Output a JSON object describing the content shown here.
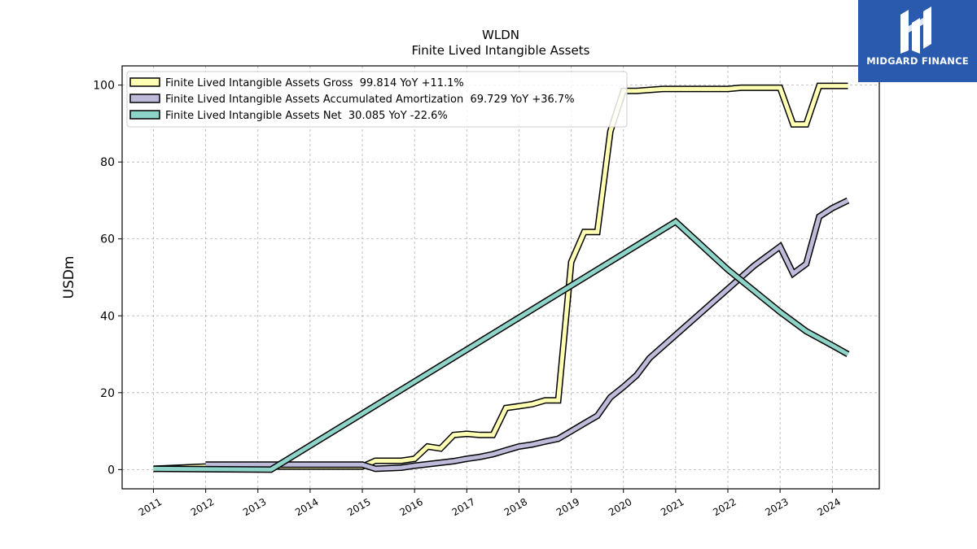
{
  "chart_data": {
    "type": "line",
    "title": "WLDN",
    "subtitle": "Finite Lived Intangible Assets",
    "ylabel": "USDm",
    "xlabel": "",
    "ylim": [
      -5,
      105
    ],
    "xlim": [
      2010.4,
      2024.9
    ],
    "yticks": [
      0,
      20,
      40,
      60,
      80,
      100
    ],
    "xticks": [
      2011,
      2012,
      2013,
      2014,
      2015,
      2016,
      2017,
      2018,
      2019,
      2020,
      2021,
      2022,
      2023,
      2024
    ],
    "grid": true,
    "legend_position": "top-left",
    "series": [
      {
        "name": "Finite Lived Intangible Assets Gross  99.814 YoY +11.1%",
        "color": "#ffffb3",
        "points": [
          [
            2011.0,
            0.2
          ],
          [
            2012.0,
            0.8
          ],
          [
            2013.0,
            0.8
          ],
          [
            2015.0,
            0.8
          ],
          [
            2015.25,
            2.3
          ],
          [
            2015.75,
            2.3
          ],
          [
            2016.0,
            2.8
          ],
          [
            2016.25,
            6.0
          ],
          [
            2016.5,
            5.5
          ],
          [
            2016.75,
            9.0
          ],
          [
            2017.0,
            9.3
          ],
          [
            2017.25,
            9.0
          ],
          [
            2017.5,
            9.0
          ],
          [
            2017.75,
            16.0
          ],
          [
            2018.0,
            16.5
          ],
          [
            2018.25,
            17.0
          ],
          [
            2018.5,
            18.0
          ],
          [
            2018.75,
            18.0
          ],
          [
            2019.0,
            54.0
          ],
          [
            2019.25,
            61.8
          ],
          [
            2019.5,
            61.8
          ],
          [
            2019.75,
            88.0
          ],
          [
            2020.0,
            98.5
          ],
          [
            2020.25,
            98.5
          ],
          [
            2020.75,
            99.0
          ],
          [
            2022.0,
            99.0
          ],
          [
            2022.25,
            99.3
          ],
          [
            2023.0,
            99.3
          ],
          [
            2023.25,
            89.8
          ],
          [
            2023.5,
            89.8
          ],
          [
            2023.75,
            99.8
          ],
          [
            2024.3,
            99.8
          ]
        ]
      },
      {
        "name": "Finite Lived Intangible Assets Accumulated Amortization  69.729 YoY +36.7%",
        "color": "#bebada",
        "points": [
          [
            2012.0,
            1.3
          ],
          [
            2015.0,
            1.3
          ],
          [
            2015.25,
            0.2
          ],
          [
            2015.75,
            0.5
          ],
          [
            2016.0,
            1.0
          ],
          [
            2016.5,
            1.8
          ],
          [
            2016.75,
            2.2
          ],
          [
            2017.0,
            2.8
          ],
          [
            2017.25,
            3.3
          ],
          [
            2017.5,
            4.0
          ],
          [
            2017.75,
            5.0
          ],
          [
            2018.0,
            6.0
          ],
          [
            2018.25,
            6.5
          ],
          [
            2018.5,
            7.3
          ],
          [
            2018.75,
            8.0
          ],
          [
            2019.0,
            10.0
          ],
          [
            2019.25,
            12.0
          ],
          [
            2019.5,
            14.0
          ],
          [
            2019.75,
            18.8
          ],
          [
            2020.0,
            21.5
          ],
          [
            2020.25,
            24.5
          ],
          [
            2020.5,
            29.0
          ],
          [
            2021.0,
            35.0
          ],
          [
            2022.0,
            47.0
          ],
          [
            2022.5,
            53.0
          ],
          [
            2023.0,
            58.0
          ],
          [
            2023.25,
            51.0
          ],
          [
            2023.5,
            53.5
          ],
          [
            2023.75,
            65.8
          ],
          [
            2024.0,
            68.0
          ],
          [
            2024.3,
            70.0
          ]
        ]
      },
      {
        "name": "Finite Lived Intangible Assets Net  30.085 YoY -22.6%",
        "color": "#8dd3c7",
        "points": [
          [
            2011.0,
            0.2
          ],
          [
            2013.25,
            0.0
          ],
          [
            2021.0,
            64.5
          ],
          [
            2022.0,
            52.0
          ],
          [
            2022.5,
            46.5
          ],
          [
            2023.0,
            41.0
          ],
          [
            2023.5,
            36.0
          ],
          [
            2024.0,
            32.3
          ],
          [
            2024.3,
            30.0
          ]
        ]
      }
    ]
  },
  "logo": {
    "text": "MIDGARD FINANCE",
    "background": "#2a5aad"
  }
}
